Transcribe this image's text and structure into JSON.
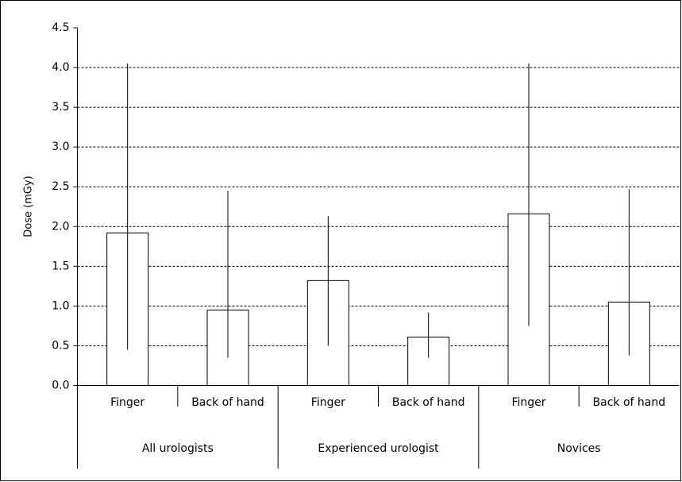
{
  "chart_data": {
    "type": "bar",
    "y_label": "Dose (mGy)",
    "groups": [
      "All urologists",
      "Experienced urologist",
      "Novices"
    ],
    "categories": [
      "Finger",
      "Back of hand",
      "Finger",
      "Back of hand",
      "Finger",
      "Back of hand"
    ],
    "values": [
      1.92,
      0.95,
      1.32,
      0.61,
      2.16,
      1.05
    ],
    "error_low": [
      0.45,
      0.35,
      0.5,
      0.35,
      0.75,
      0.38
    ],
    "error_high": [
      4.05,
      2.45,
      2.13,
      0.92,
      4.05,
      2.47
    ],
    "color": "#ffffff",
    "ylim": [
      0,
      4.5
    ],
    "yticks": [
      {
        "value": 0,
        "label": "0.0"
      },
      0.5,
      {
        "value": 1,
        "label": "1.0"
      },
      1.5,
      {
        "value": 2,
        "label": "2.0"
      },
      2.5,
      {
        "value": 3,
        "label": "3.0"
      },
      3.5,
      {
        "value": 4,
        "label": "4.0"
      },
      4.5
    ],
    "grid": true
  }
}
